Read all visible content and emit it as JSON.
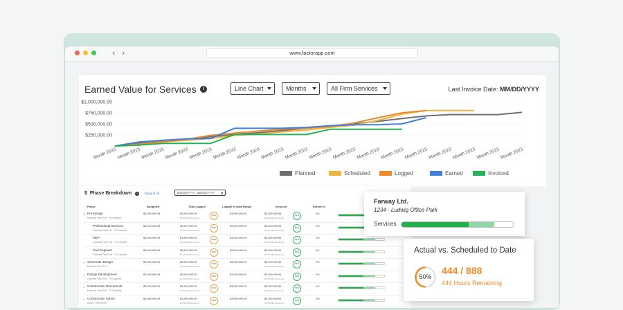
{
  "browser": {
    "url": "www.factorapp.com"
  },
  "chart": {
    "title": "Earned Value for Services",
    "dropdowns": [
      "Line Chart",
      "Months",
      "All Firm Services"
    ],
    "last_invoice_label": "Last Invoice Date: ",
    "last_invoice_value": "MM/DD/YYYY",
    "colors": {
      "planned": "#707070",
      "scheduled": "#f2b43f",
      "logged": "#ec8a2e",
      "earned": "#3f7fe0",
      "invoiced": "#22b357"
    }
  },
  "chart_data": {
    "type": "line",
    "title": "Earned Value for Services",
    "ylim": [
      0,
      1000000
    ],
    "y_ticks": [
      "$1,000,000.00",
      "$750,000.00",
      "$500,000.00",
      "$250,000.00"
    ],
    "categories": [
      "Month 2023",
      "Month 2023",
      "Month 2023",
      "Month 2023",
      "Month 2023",
      "Month 2023",
      "Month 2023",
      "Month 2023",
      "Month 2023",
      "Month 2023",
      "Month 2023",
      "Month 2023",
      "Month 2023",
      "Month 2023",
      "Month 2023",
      "Month 2023",
      "Month 2023",
      "Month 2023"
    ],
    "legend_position": "bottom",
    "series": [
      {
        "name": "Planned",
        "color": "#707070",
        "values": [
          0,
          60000,
          110000,
          160000,
          210000,
          260000,
          300000,
          350000,
          400000,
          450000,
          500000,
          560000,
          620000,
          680000,
          710000,
          710000,
          710000,
          760000
        ]
      },
      {
        "name": "Scheduled",
        "color": "#f2b43f",
        "values": [
          0,
          20000,
          90000,
          130000,
          170000,
          240000,
          270000,
          320000,
          360000,
          420000,
          470000,
          580000,
          720000,
          800000,
          800000,
          800000,
          null,
          null
        ]
      },
      {
        "name": "Logged",
        "color": "#ec8a2e",
        "values": [
          0,
          40000,
          100000,
          150000,
          240000,
          290000,
          340000,
          380000,
          400000,
          440000,
          520000,
          640000,
          750000,
          800000,
          null,
          null,
          null,
          null
        ]
      },
      {
        "name": "Earned",
        "color": "#3f7fe0",
        "values": [
          0,
          90000,
          130000,
          160000,
          170000,
          400000,
          400000,
          400000,
          420000,
          460000,
          480000,
          480000,
          500000,
          640000,
          null,
          null,
          null,
          null
        ]
      },
      {
        "name": "Invoiced",
        "color": "#22b357",
        "values": [
          0,
          20000,
          60000,
          60000,
          60000,
          260000,
          260000,
          260000,
          260000,
          380000,
          380000,
          380000,
          380000,
          null,
          null,
          null,
          null,
          null
        ]
      }
    ]
  },
  "phase": {
    "header": "Phase Breakdown",
    "expand_label": "Expand All",
    "date_range": "MM/DD/YYYY - MM/DD/YYYY",
    "columns": [
      "Phase",
      "Budgeted",
      "Total Logged",
      "Logged in Date Range",
      "Invoiced",
      "Earned %"
    ],
    "rows": [
      {
        "name": "Pre-Design",
        "sub": "Expected Fixed Fee · 75 Complete",
        "budget": "$3,999,999.99",
        "logged": "$3,999,999.99",
        "logged_sub": "$3,999,999 Remaining",
        "ring1": "50%",
        "range": "$3,999,999.99",
        "invoiced": "$3,999,999.99",
        "invoiced_sub": "$3,999,999 Remaining",
        "ring2": "50%",
        "earned": "0%",
        "a": 0.62,
        "b": 0.2,
        "arrow": "∨"
      },
      {
        "name": "Professional Services",
        "sub": "Expected Fixed Fee · 75 Complete",
        "budget": "$3,999,999.99",
        "logged": "$3,999,999.99",
        "logged_sub": "$3,999,999 Remaining",
        "ring1": "50%",
        "range": "$3,999,999.99",
        "invoiced": "$3,999,999.99",
        "invoiced_sub": "$3,999,999 Remaining",
        "ring2": "50%",
        "earned": "0%",
        "a": 0.62,
        "b": 0.2,
        "arrow": ""
      },
      {
        "name": "MEP",
        "sub": "Expected Fixed Fee · 75 Complete",
        "budget": "$3,999,999.99",
        "logged": "$3,999,999.99",
        "logged_sub": "$3,999,999 Remaining",
        "ring1": "50%",
        "range": "$3,999,999.99",
        "invoiced": "$3,999,999.99",
        "invoiced_sub": "$3,999,999 Remaining",
        "ring2": "50%",
        "earned": "0%",
        "a": 0.55,
        "b": 0.25,
        "arrow": ""
      },
      {
        "name": "Civil Engineer",
        "sub": "Expected Fixed Fee · 75 Complete",
        "budget": "$3,999,999.99",
        "logged": "$3,999,999.99",
        "logged_sub": "$3,999,999 Remaining",
        "ring1": "50%",
        "range": "$3,999,999.99",
        "invoiced": "$3,999,999.99",
        "invoiced_sub": "$3,999,999 Remaining",
        "ring2": "50%",
        "earned": "0%",
        "a": 0.55,
        "b": 0.25,
        "arrow": ""
      },
      {
        "name": "Schematic Design",
        "sub": "Expected Fixed Fee",
        "budget": "$3,999,999.99",
        "logged": "$3,999,999.99",
        "logged_sub": "$3,999,999 Remaining",
        "ring1": "50%",
        "range": "$3,999,999.99",
        "invoiced": "$3,999,999.99",
        "invoiced_sub": "$3,999,999 Remaining",
        "ring2": "50%",
        "earned": "0%",
        "a": 0.55,
        "b": 0.25,
        "arrow": ">"
      },
      {
        "name": "Design Development",
        "sub": "Expected Fixed Fee · 75 Complete",
        "budget": "$3,999,999.99",
        "logged": "$3,999,999.99",
        "logged_sub": "$3,999,999 Remaining",
        "ring1": "50%",
        "range": "$3,999,999.99",
        "invoiced": "$3,999,999.99",
        "invoiced_sub": "$3,999,999 Remaining",
        "ring2": "50%",
        "earned": "0%",
        "a": 0.55,
        "b": 0.25,
        "arrow": ">"
      },
      {
        "name": "Construction Documents",
        "sub": "Expected Fixed Fee · 75 Complete",
        "budget": "$3,999,999.99",
        "logged": "$3,999,999.99",
        "logged_sub": "$3,999,999 Remaining",
        "ring1": "50%",
        "range": "$3,999,999.99",
        "invoiced": "$3,999,999.99",
        "invoiced_sub": "$3,999,999 Remaining",
        "ring2": "50%",
        "earned": "0%",
        "a": 0.55,
        "b": 0.25,
        "arrow": ">"
      },
      {
        "name": "Construction Admin",
        "sub": "Hourly · $99,999.99",
        "budget": "$3,999,999.99",
        "logged": "$3,999,999.99",
        "logged_sub": "$3,999,999 Remaining",
        "ring1": "50%",
        "range": "$3,999,999.99",
        "invoiced": "$3,999,999.99",
        "invoiced_sub": "$3,999,999 Remaining",
        "ring2": "50%",
        "earned": "0%",
        "a": 0.55,
        "b": 0.25,
        "arrow": ">"
      }
    ]
  },
  "client_popup": {
    "name": "Farway Ltd.",
    "project": "1234 - Ludwig Office Park",
    "service_label": "Services",
    "progress_earned": 0.6,
    "progress_extra": 0.23
  },
  "ave_popup": {
    "title": "Actual vs. Scheduled to Date",
    "percent": "50%",
    "percent_value": 0.5,
    "numbers": "444 / 888",
    "remaining": "444 Hours Remaining"
  }
}
